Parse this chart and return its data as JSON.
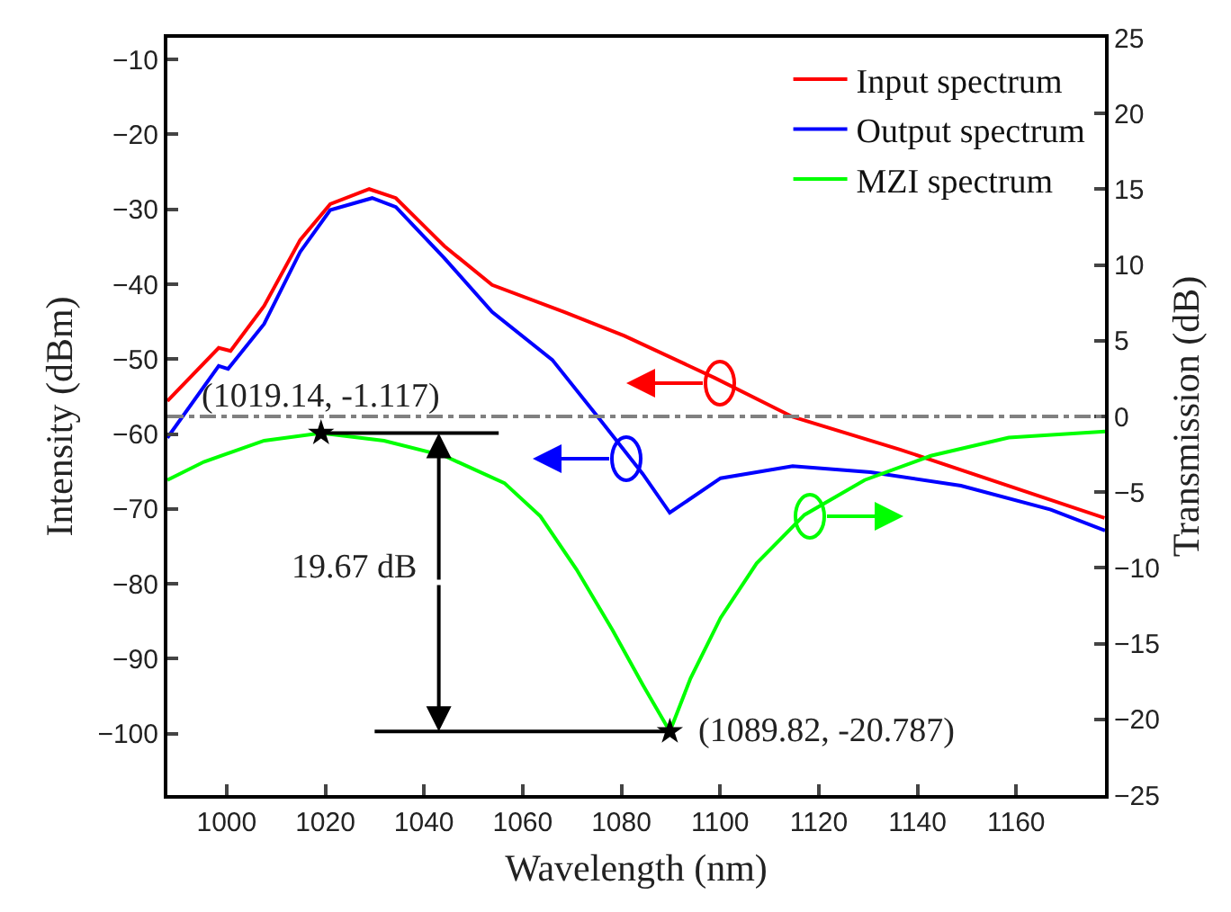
{
  "chart_data": {
    "type": "line",
    "xlabel": "Wavelength (nm)",
    "ylabel": "Intensity (dBm)",
    "y2label": "Transmission (dB)",
    "xlim": [
      988,
      1178
    ],
    "xticks": [
      1000,
      1020,
      1040,
      1060,
      1080,
      1100,
      1120,
      1140,
      1160
    ],
    "ylim": [
      -108.2,
      -7.1
    ],
    "yticks": [
      -10,
      -20,
      -30,
      -40,
      -50,
      -60,
      -70,
      -80,
      -90,
      -100
    ],
    "y2lim": [
      -25,
      25
    ],
    "y2ticks": [
      -25,
      -20,
      -15,
      -10,
      -5,
      0,
      5,
      10,
      15,
      20,
      25
    ],
    "grid": false,
    "legend": "top right",
    "line_style": "solid",
    "marker": "none",
    "series": [
      {
        "name": "Input spectrum",
        "color": "#ff0000",
        "x": [
          988,
          998.4,
          1000.8,
          1007.6,
          1014.9,
          1021,
          1028.9,
          1034.3,
          1044.1,
          1053.8,
          1068.4,
          1080.6,
          1098.9,
          1114.7,
          1136.6,
          1177.9
        ],
        "values": [
          -55.6,
          -48.5,
          -48.9,
          -42.9,
          -34.1,
          -29.3,
          -27.3,
          -28.5,
          -34.9,
          -40.1,
          -43.7,
          -46.9,
          -52.5,
          -57.7,
          -62.1,
          -71.2
        ]
      },
      {
        "name": "Output spectrum",
        "color": "#0000ff",
        "x": [
          988,
          998.4,
          1000.3,
          1007.6,
          1014.9,
          1021,
          1029.5,
          1034.3,
          1044.1,
          1053.8,
          1066,
          1075.7,
          1084.3,
          1089.8,
          1100.1,
          1114.7,
          1130.5,
          1148.8,
          1167,
          1178
        ],
        "values": [
          -60.5,
          -50.9,
          -51.3,
          -45.3,
          -35.7,
          -30.1,
          -28.5,
          -29.7,
          -36.5,
          -43.7,
          -50.1,
          -58.1,
          -65.3,
          -70.5,
          -65.9,
          -64.3,
          -65.1,
          -66.9,
          -70.1,
          -72.9
        ]
      },
      {
        "name": "MZI spectrum",
        "color": "#00ff00",
        "axis": "y2",
        "x": [
          988,
          995.4,
          1007.6,
          1019.14,
          1031.9,
          1044.1,
          1056.3,
          1063.6,
          1070.9,
          1078.2,
          1084.3,
          1089.82,
          1094,
          1100.1,
          1107.4,
          1117.1,
          1129.3,
          1142.7,
          1158.5,
          1178
        ],
        "values": [
          -4.2,
          -3.0,
          -1.6,
          -1.1,
          -1.6,
          -2.6,
          -4.4,
          -6.6,
          -10.1,
          -14.1,
          -17.7,
          -20.8,
          -17.3,
          -13.3,
          -9.7,
          -6.5,
          -4.2,
          -2.6,
          -1.4,
          -1.0
        ]
      },
      {
        "type": "scatter",
        "axis": "y2",
        "marker": "star",
        "color": "#000000",
        "x": [
          1019.14,
          1089.82
        ],
        "values": [
          -1.1,
          -20.8
        ]
      }
    ],
    "ref_lines": [
      {
        "axis": "y2",
        "value": 0,
        "color": "#808080",
        "line_style": "dashed"
      }
    ],
    "annotations": [
      "(1019.14, -1.117)",
      "(1089.82, -20.787)",
      "19.67 dB"
    ]
  }
}
